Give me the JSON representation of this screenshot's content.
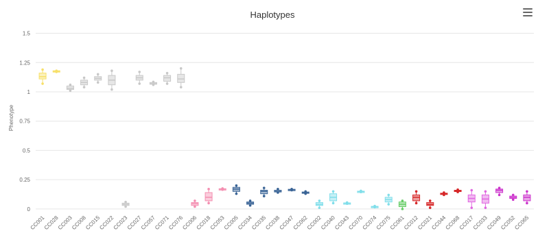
{
  "chart_data": {
    "type": "boxplot",
    "title": "Haplotypes",
    "xlabel": "",
    "ylabel": "Phenotype",
    "ylim": [
      -0.03,
      1.55
    ],
    "yticks": [
      0,
      0.25,
      0.5,
      0.75,
      1,
      1.25,
      1.5
    ],
    "ytick_labels": [
      "0",
      "0.25",
      "0.5",
      "0.75",
      "1",
      "1.25",
      "1.5"
    ],
    "grid": true,
    "categories": [
      {
        "name": "CC001",
        "color": "#f7e06a",
        "min": 1.07,
        "q1": 1.11,
        "median": 1.13,
        "q3": 1.16,
        "max": 1.19
      },
      {
        "name": "CC028",
        "color": "#f7e06a",
        "min": 1.17,
        "q1": 1.17,
        "median": 1.175,
        "q3": 1.18,
        "max": 1.18
      },
      {
        "name": "CC003",
        "color": "#c8c8c8",
        "min": 1.01,
        "q1": 1.02,
        "median": 1.03,
        "q3": 1.05,
        "max": 1.06
      },
      {
        "name": "CC008",
        "color": "#c8c8c8",
        "min": 1.04,
        "q1": 1.06,
        "median": 1.08,
        "q3": 1.1,
        "max": 1.12
      },
      {
        "name": "CC015",
        "color": "#c8c8c8",
        "min": 1.08,
        "q1": 1.1,
        "median": 1.115,
        "q3": 1.13,
        "max": 1.15
      },
      {
        "name": "CC022",
        "color": "#c8c8c8",
        "min": 1.02,
        "q1": 1.06,
        "median": 1.1,
        "q3": 1.14,
        "max": 1.18
      },
      {
        "name": "CC023",
        "color": "#c8c8c8",
        "min": 0.02,
        "q1": 0.03,
        "median": 0.04,
        "q3": 0.05,
        "max": 0.06
      },
      {
        "name": "CC027",
        "color": "#c8c8c8",
        "min": 1.07,
        "q1": 1.1,
        "median": 1.12,
        "q3": 1.14,
        "max": 1.17
      },
      {
        "name": "CC057",
        "color": "#c8c8c8",
        "min": 1.06,
        "q1": 1.065,
        "median": 1.07,
        "q3": 1.08,
        "max": 1.085
      },
      {
        "name": "CC071",
        "color": "#c8c8c8",
        "min": 1.07,
        "q1": 1.09,
        "median": 1.12,
        "q3": 1.14,
        "max": 1.16
      },
      {
        "name": "CC076",
        "color": "#c8c8c8",
        "min": 1.04,
        "q1": 1.08,
        "median": 1.11,
        "q3": 1.15,
        "max": 1.2
      },
      {
        "name": "CC006",
        "color": "#f48fb1",
        "min": 0.02,
        "q1": 0.03,
        "median": 0.045,
        "q3": 0.055,
        "max": 0.07
      },
      {
        "name": "CC018",
        "color": "#f48fb1",
        "min": 0.05,
        "q1": 0.07,
        "median": 0.1,
        "q3": 0.14,
        "max": 0.17
      },
      {
        "name": "CC053",
        "color": "#f48fb1",
        "min": 0.165,
        "q1": 0.168,
        "median": 0.17,
        "q3": 0.173,
        "max": 0.175
      },
      {
        "name": "CC005",
        "color": "#3a6496",
        "min": 0.13,
        "q1": 0.15,
        "median": 0.17,
        "q3": 0.185,
        "max": 0.2
      },
      {
        "name": "CC034",
        "color": "#3a6496",
        "min": 0.03,
        "q1": 0.04,
        "median": 0.05,
        "q3": 0.06,
        "max": 0.07
      },
      {
        "name": "CC035",
        "color": "#3a6496",
        "min": 0.11,
        "q1": 0.13,
        "median": 0.15,
        "q3": 0.16,
        "max": 0.18
      },
      {
        "name": "CC038",
        "color": "#3a6496",
        "min": 0.14,
        "q1": 0.145,
        "median": 0.15,
        "q3": 0.16,
        "max": 0.17
      },
      {
        "name": "CC047",
        "color": "#3a6496",
        "min": 0.16,
        "q1": 0.162,
        "median": 0.165,
        "q3": 0.168,
        "max": 0.17
      },
      {
        "name": "CC062",
        "color": "#3a6496",
        "min": 0.13,
        "q1": 0.135,
        "median": 0.14,
        "q3": 0.145,
        "max": 0.15
      },
      {
        "name": "CC002",
        "color": "#80deea",
        "min": 0.01,
        "q1": 0.03,
        "median": 0.04,
        "q3": 0.055,
        "max": 0.07
      },
      {
        "name": "CC040",
        "color": "#80deea",
        "min": 0.05,
        "q1": 0.07,
        "median": 0.1,
        "q3": 0.13,
        "max": 0.15
      },
      {
        "name": "CC043",
        "color": "#80deea",
        "min": 0.045,
        "q1": 0.048,
        "median": 0.05,
        "q3": 0.052,
        "max": 0.055
      },
      {
        "name": "CC070",
        "color": "#80deea",
        "min": 0.145,
        "q1": 0.148,
        "median": 0.15,
        "q3": 0.152,
        "max": 0.155
      },
      {
        "name": "CC074",
        "color": "#80deea",
        "min": 0.015,
        "q1": 0.018,
        "median": 0.02,
        "q3": 0.022,
        "max": 0.025
      },
      {
        "name": "CC075",
        "color": "#80deea",
        "min": 0.04,
        "q1": 0.06,
        "median": 0.08,
        "q3": 0.1,
        "max": 0.12
      },
      {
        "name": "CC061",
        "color": "#66cc66",
        "min": 0.0,
        "q1": 0.02,
        "median": 0.04,
        "q3": 0.06,
        "max": 0.07
      },
      {
        "name": "CC012",
        "color": "#d62728",
        "min": 0.05,
        "q1": 0.07,
        "median": 0.1,
        "q3": 0.12,
        "max": 0.15
      },
      {
        "name": "CC021",
        "color": "#d62728",
        "min": 0.01,
        "q1": 0.03,
        "median": 0.04,
        "q3": 0.055,
        "max": 0.07
      },
      {
        "name": "CC044",
        "color": "#d62728",
        "min": 0.12,
        "q1": 0.125,
        "median": 0.13,
        "q3": 0.135,
        "max": 0.14
      },
      {
        "name": "CC068",
        "color": "#d62728",
        "min": 0.145,
        "q1": 0.15,
        "median": 0.155,
        "q3": 0.16,
        "max": 0.165
      },
      {
        "name": "CC017",
        "color": "#e066e0",
        "min": 0.01,
        "q1": 0.06,
        "median": 0.09,
        "q3": 0.12,
        "max": 0.16
      },
      {
        "name": "CC033",
        "color": "#e066e0",
        "min": 0.01,
        "q1": 0.05,
        "median": 0.085,
        "q3": 0.12,
        "max": 0.15
      },
      {
        "name": "CC049",
        "color": "#cc33cc",
        "min": 0.12,
        "q1": 0.14,
        "median": 0.16,
        "q3": 0.17,
        "max": 0.18
      },
      {
        "name": "CC052",
        "color": "#cc33cc",
        "min": 0.08,
        "q1": 0.09,
        "median": 0.1,
        "q3": 0.11,
        "max": 0.12
      },
      {
        "name": "CC065",
        "color": "#cc33cc",
        "min": 0.05,
        "q1": 0.07,
        "median": 0.1,
        "q3": 0.12,
        "max": 0.15
      }
    ]
  }
}
